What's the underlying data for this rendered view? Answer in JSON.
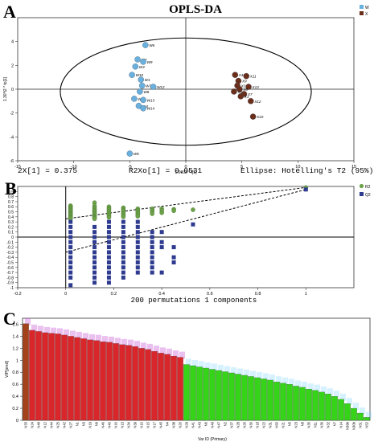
{
  "panels": {
    "a": "A",
    "b": "B",
    "c": "C"
  },
  "panel_a_stats": {
    "left": "2X[1] = 0.375",
    "middle": "R2Xo[1] = 0.0531",
    "right": "Ellipse: Hotelling's T2 (95%)"
  },
  "chart_data": [
    {
      "type": "scatter",
      "title": "OPLS-DA",
      "xlabel": "1.0003 * t[1]",
      "ylabel": "1.30*t2 * to[1]",
      "xlim": [
        -15,
        15
      ],
      "ylim": [
        -6,
        6
      ],
      "xticks": [
        -15,
        -10,
        -5,
        0,
        5,
        10,
        15
      ],
      "yticks": [
        -6,
        -4,
        -2,
        0,
        2,
        4
      ],
      "grid": false,
      "ellipse": "Hotelling's T2 (95%)",
      "legend": "top-right",
      "series": [
        {
          "name": "W",
          "color": "#6ab0de",
          "points": [
            {
              "label": "W6",
              "x": -3.6,
              "y": 3.7
            },
            {
              "label": "W2",
              "x": -4.3,
              "y": 2.5
            },
            {
              "label": "W9",
              "x": -3.8,
              "y": 2.3
            },
            {
              "label": "W3",
              "x": -4.5,
              "y": 1.9
            },
            {
              "label": "W10",
              "x": -4.8,
              "y": 1.2
            },
            {
              "label": "W1",
              "x": -4.0,
              "y": 0.8
            },
            {
              "label": "W7",
              "x": -3.9,
              "y": 0.3
            },
            {
              "label": "W12",
              "x": -2.9,
              "y": 0.2
            },
            {
              "label": "W8",
              "x": -4.1,
              "y": -0.2
            },
            {
              "label": "W15",
              "x": -4.6,
              "y": -0.8
            },
            {
              "label": "W13",
              "x": -3.8,
              "y": -0.9
            },
            {
              "label": "W4",
              "x": -4.2,
              "y": -1.4
            },
            {
              "label": "W14",
              "x": -3.8,
              "y": -1.6
            },
            {
              "label": "W5",
              "x": -5.0,
              "y": -5.4
            }
          ]
        },
        {
          "name": "X",
          "color": "#6b2e1a",
          "points": [
            {
              "label": "X11",
              "x": 5.4,
              "y": 1.1
            },
            {
              "label": "X4",
              "x": 4.4,
              "y": 1.2
            },
            {
              "label": "X9",
              "x": 4.7,
              "y": 0.7
            },
            {
              "label": "X2",
              "x": 4.6,
              "y": 0.3
            },
            {
              "label": "X13",
              "x": 5.6,
              "y": 0.2
            },
            {
              "label": "X8",
              "x": 4.8,
              "y": 0.0
            },
            {
              "label": "X6",
              "x": 4.3,
              "y": -0.2
            },
            {
              "label": "X7",
              "x": 5.2,
              "y": -0.4
            },
            {
              "label": "X1",
              "x": 4.9,
              "y": -0.6
            },
            {
              "label": "X12",
              "x": 5.8,
              "y": -1.0
            },
            {
              "label": "X10",
              "x": 6.0,
              "y": -2.3
            }
          ]
        }
      ]
    },
    {
      "type": "scatter",
      "xlabel": "200 permutations 1 components",
      "xlim": [
        -0.2,
        1.2
      ],
      "ylim": [
        -1.0,
        1.0
      ],
      "xticks": [
        -0.2,
        0,
        0.2,
        0.4,
        0.6,
        0.8,
        1
      ],
      "yticks": [
        -1,
        -0.9,
        -0.8,
        -0.7,
        -0.6,
        -0.5,
        -0.4,
        -0.3,
        -0.2,
        -0.1,
        0,
        0.1,
        0.2,
        0.3,
        0.4,
        0.5,
        0.6,
        0.7,
        0.8,
        0.9
      ],
      "legend": "top-right",
      "series": [
        {
          "name": "R2",
          "color": "#6ea24a",
          "columns": [
            {
              "x": 0.02,
              "values": [
                0.62,
                0.6,
                0.58,
                0.56,
                0.54,
                0.52,
                0.5,
                0.48,
                0.46,
                0.44,
                0.42,
                0.4,
                0.38,
                0.36
              ]
            },
            {
              "x": 0.12,
              "values": [
                0.68,
                0.62,
                0.58,
                0.55,
                0.52,
                0.5,
                0.47,
                0.45,
                0.42,
                0.4,
                0.38,
                0.36
              ]
            },
            {
              "x": 0.18,
              "values": [
                0.6,
                0.57,
                0.54,
                0.51,
                0.48,
                0.45,
                0.42,
                0.39
              ]
            },
            {
              "x": 0.24,
              "values": [
                0.58,
                0.55,
                0.52,
                0.49,
                0.46,
                0.43,
                0.4
              ]
            },
            {
              "x": 0.3,
              "values": [
                0.56,
                0.53,
                0.5,
                0.47,
                0.44,
                0.41
              ]
            },
            {
              "x": 0.36,
              "values": [
                0.56,
                0.53,
                0.5,
                0.46
              ]
            },
            {
              "x": 0.4,
              "values": [
                0.56,
                0.52,
                0.48
              ]
            },
            {
              "x": 0.45,
              "values": [
                0.55,
                0.52
              ]
            },
            {
              "x": 0.53,
              "values": [
                0.54
              ]
            },
            {
              "x": 1.0,
              "values": [
                0.98
              ]
            }
          ]
        },
        {
          "name": "Q2",
          "color": "#2e3b8f",
          "columns": [
            {
              "x": 0.02,
              "values": [
                0.3,
                0.2,
                0.1,
                0.0,
                -0.1,
                -0.2,
                -0.3,
                -0.4,
                -0.5,
                -0.6,
                -0.7,
                -0.8,
                -0.95
              ]
            },
            {
              "x": 0.12,
              "values": [
                0.2,
                0.1,
                0.0,
                -0.1,
                -0.2,
                -0.3,
                -0.4,
                -0.5,
                -0.6,
                -0.7,
                -0.8,
                -0.9
              ]
            },
            {
              "x": 0.18,
              "values": [
                0.3,
                0.2,
                0.1,
                0.0,
                -0.1,
                -0.2,
                -0.3,
                -0.4,
                -0.5,
                -0.6,
                -0.7,
                -0.8,
                -0.9
              ]
            },
            {
              "x": 0.24,
              "values": [
                0.3,
                0.2,
                0.1,
                0.0,
                -0.1,
                -0.2,
                -0.3,
                -0.4,
                -0.5,
                -0.6,
                -0.7,
                -0.8
              ]
            },
            {
              "x": 0.3,
              "values": [
                0.3,
                0.2,
                0.1,
                0.0,
                -0.1,
                -0.2,
                -0.3,
                -0.4,
                -0.5,
                -0.6,
                -0.7
              ]
            },
            {
              "x": 0.36,
              "values": [
                0.1,
                0.0,
                -0.1,
                -0.2,
                -0.3,
                -0.4,
                -0.5,
                -0.6,
                -0.7
              ]
            },
            {
              "x": 0.4,
              "values": [
                0.1,
                -0.1,
                -0.2,
                -0.7
              ]
            },
            {
              "x": 0.45,
              "values": [
                -0.2,
                -0.4,
                -0.5
              ]
            },
            {
              "x": 0.53,
              "values": [
                0.25
              ]
            },
            {
              "x": 1.0,
              "values": [
                0.94
              ]
            }
          ]
        }
      ],
      "regression_lines": [
        {
          "series": "R2",
          "from": [
            0,
            0.36
          ],
          "to": [
            1,
            0.98
          ]
        },
        {
          "series": "Q2",
          "from": [
            0,
            -0.3
          ],
          "to": [
            1,
            0.94
          ]
        }
      ]
    },
    {
      "type": "bar",
      "xlabel": "Var ID (Primary)",
      "ylabel": "VIP[pred]",
      "ylim": [
        0,
        1.7
      ],
      "yticks": [
        0,
        0.2,
        0.4,
        0.6,
        0.8,
        1,
        1.2,
        1.4,
        1.6
      ],
      "grid": false,
      "colors": {
        "high": "#d9262a",
        "low": "#35d418",
        "first": "#a3421b",
        "whisker": "#c24bd1",
        "whisker_low": "#8ad8ff"
      },
      "categories": [
        "N33",
        "N24",
        "N48",
        "N12",
        "N44",
        "N25",
        "N42",
        "N27",
        "N1",
        "N3",
        "N19",
        "N9",
        "N46",
        "N40",
        "N16",
        "N13",
        "N34",
        "N39",
        "N10",
        "N15",
        "N17",
        "N45",
        "N4",
        "N38",
        "N20",
        "N29",
        "N41",
        "N43",
        "N6",
        "N49",
        "N47",
        "N2",
        "N37",
        "N28",
        "N26",
        "N30",
        "N18",
        "N22",
        "N31",
        "N50",
        "N21",
        "N5",
        "N23",
        "N8",
        "N35",
        "N11",
        "N36",
        "N32",
        "N7",
        "N14",
        "N39b",
        "N30b",
        "N51",
        "N52"
      ],
      "values": [
        1.61,
        1.5,
        1.48,
        1.46,
        1.45,
        1.44,
        1.42,
        1.4,
        1.38,
        1.36,
        1.34,
        1.33,
        1.31,
        1.3,
        1.28,
        1.26,
        1.25,
        1.23,
        1.2,
        1.18,
        1.15,
        1.12,
        1.1,
        1.07,
        1.05,
        0.93,
        0.91,
        0.89,
        0.87,
        0.85,
        0.83,
        0.81,
        0.79,
        0.77,
        0.75,
        0.73,
        0.71,
        0.69,
        0.67,
        0.64,
        0.62,
        0.6,
        0.57,
        0.55,
        0.52,
        0.5,
        0.47,
        0.44,
        0.4,
        0.35,
        0.28,
        0.2,
        0.12,
        0.05
      ],
      "threshold": 1.0
    }
  ]
}
